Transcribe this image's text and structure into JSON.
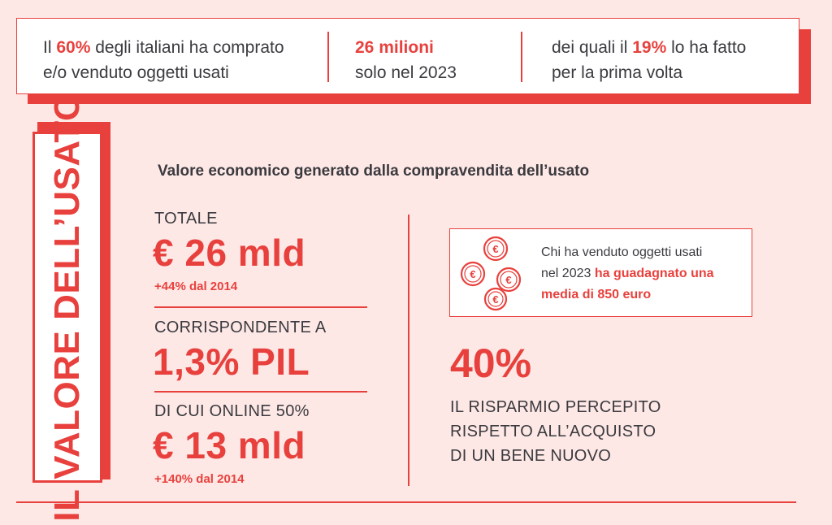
{
  "banner": {
    "stat1": {
      "pre": "Il ",
      "highlight": "60%",
      "post": " degli italiani ha comprato",
      "line2": "e/o venduto oggetti usati"
    },
    "stat2": {
      "highlight": "26 milioni",
      "line2": "solo nel 2023"
    },
    "stat3": {
      "pre": "dei quali il ",
      "highlight": "19%",
      "post": " lo ha fatto",
      "line2": "per la prima volta"
    }
  },
  "vertical_title": "IL VALORE DELL’USATO",
  "subtitle": "Valore economico generato dalla compravendita dell’usato",
  "totale": {
    "label": "TOTALE",
    "value": "€ 26 mld",
    "change": "+44% dal 2014"
  },
  "pil": {
    "label": "CORRISPONDENTE A",
    "value": "1,3% PIL"
  },
  "online": {
    "label": "DI CUI ONLINE 50%",
    "value": "€ 13 mld",
    "change": "+140% dal 2014"
  },
  "coin_box": {
    "icon": "euro-coins-icon",
    "line1": "Chi ha venduto oggetti usati",
    "line2_plain": "nel 2023 ",
    "line2_highlight": "ha guadagnato una",
    "line3_highlight": "media di 850 euro"
  },
  "saving": {
    "value": "40%",
    "line1": "IL RISPARMIO PERCEPITO",
    "line2": "RISPETTO ALL’ACQUISTO",
    "line3": "DI UN BENE NUOVO"
  },
  "colors": {
    "accent": "#e8413d",
    "background": "#fde8e6",
    "text": "#3b3a3f"
  }
}
